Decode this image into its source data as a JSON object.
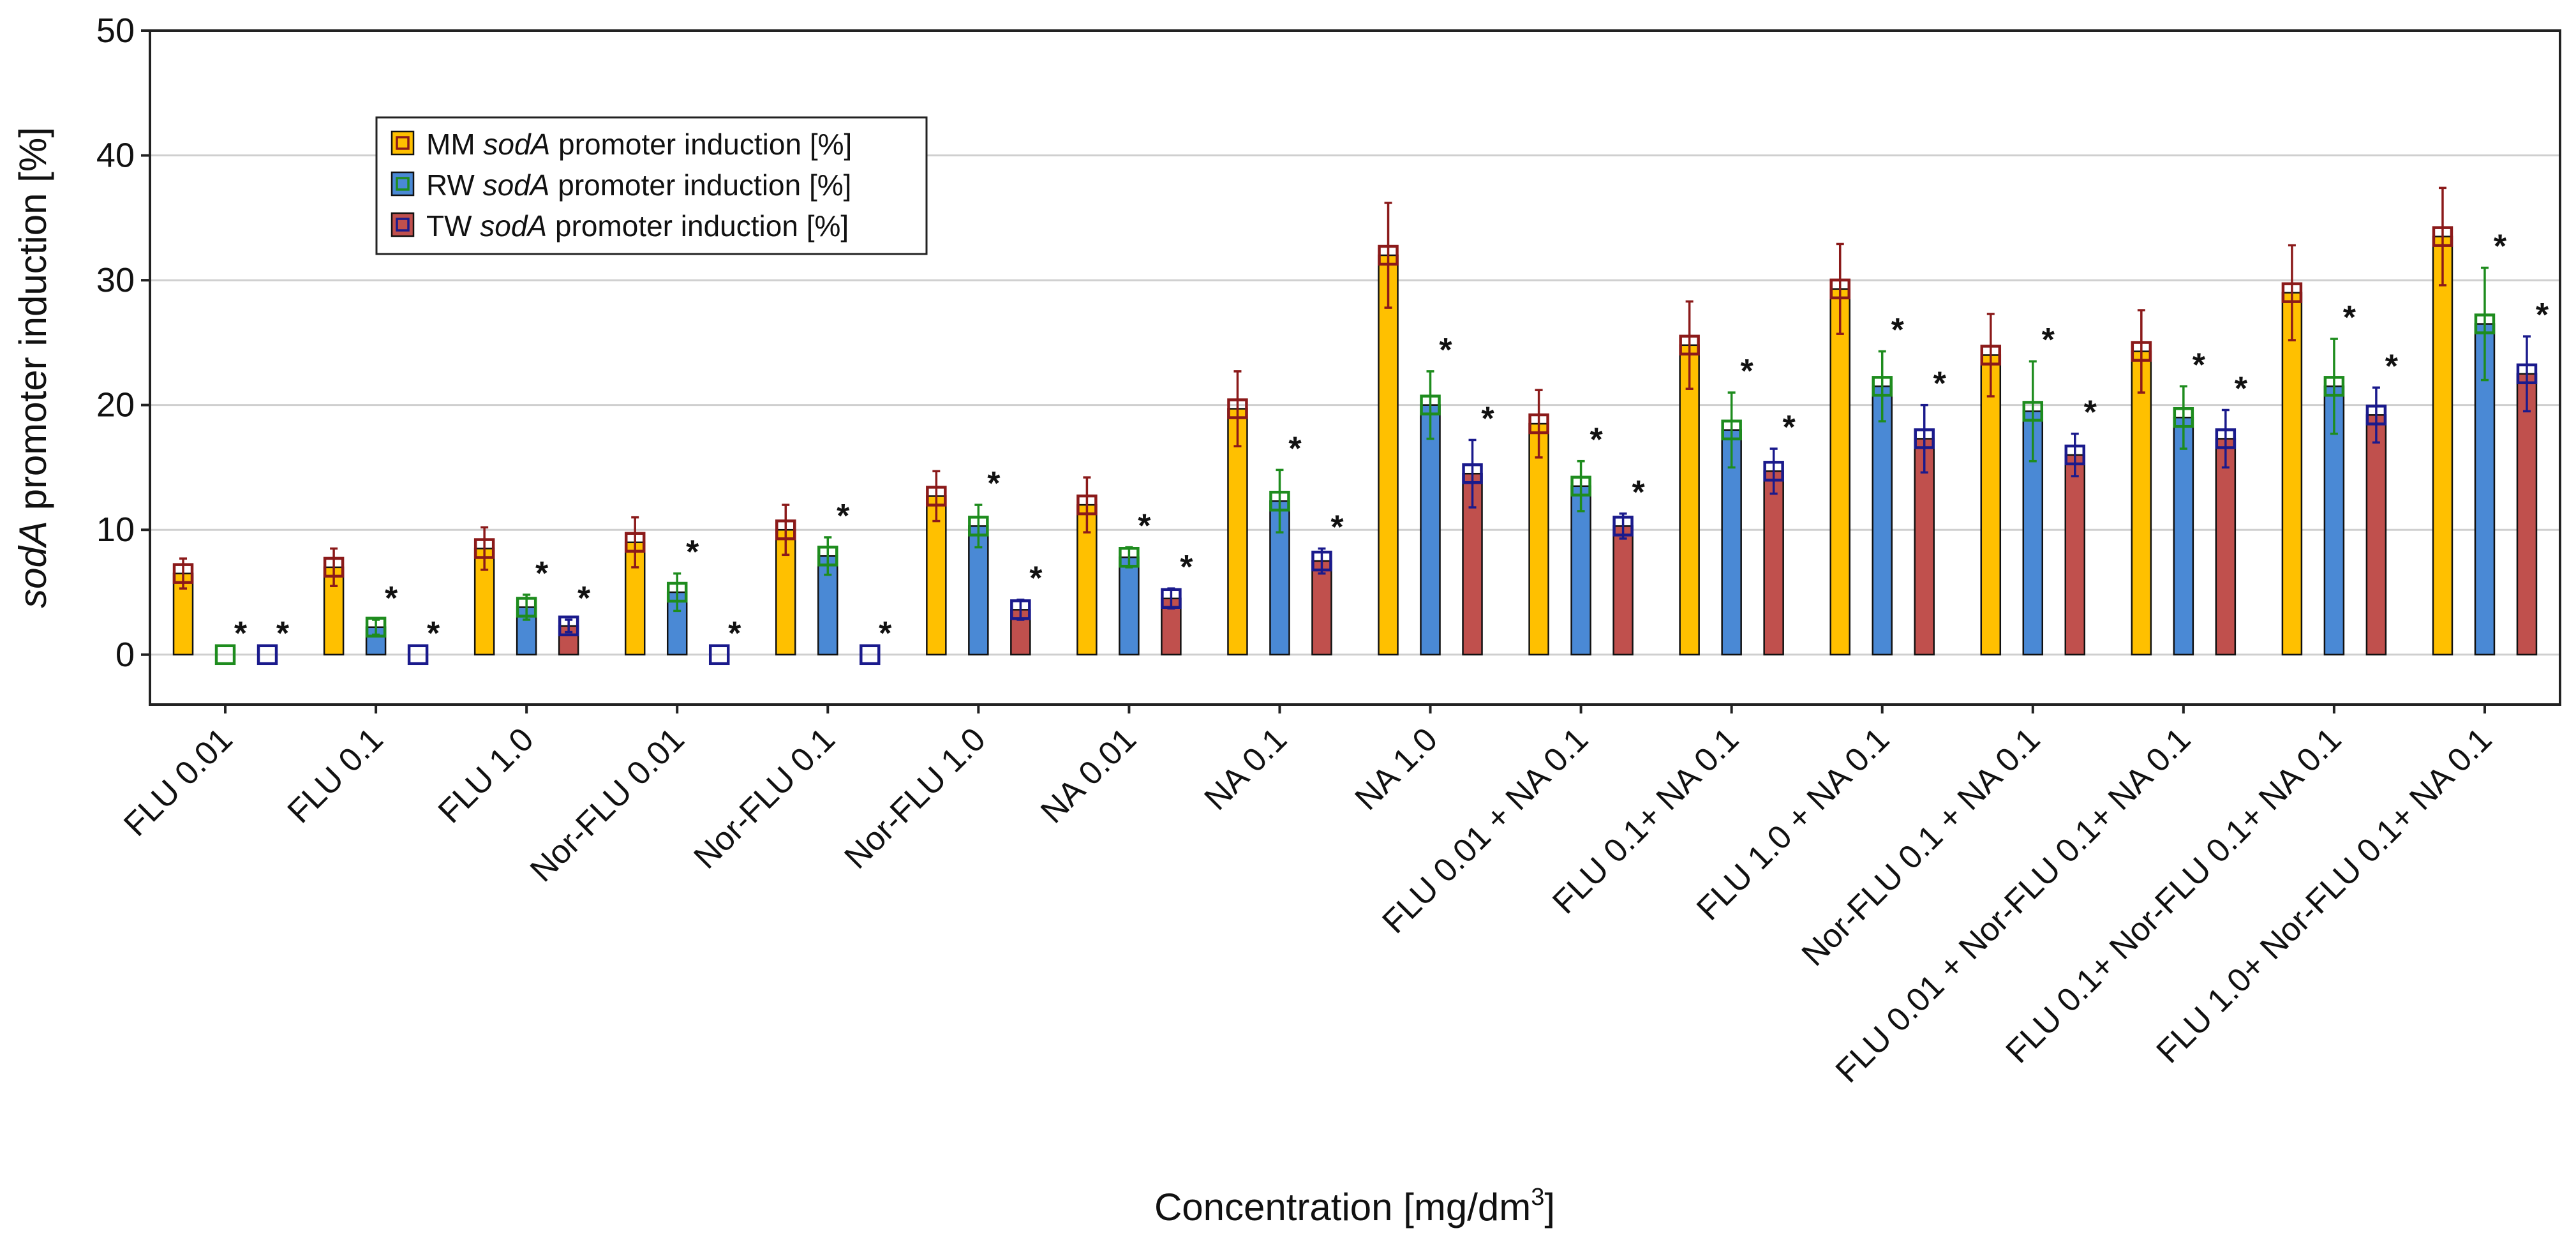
{
  "chart_data": {
    "type": "bar",
    "ylabel_italic": "sodA",
    "ylabel_rest": " promoter induction [%]",
    "xlabel_main": "Concentration [mg/dm",
    "xlabel_sup": "3",
    "xlabel_close": "]",
    "ylim": [
      -4,
      50
    ],
    "yticks": [
      0,
      10,
      20,
      30,
      40,
      50
    ],
    "grid": true,
    "legend_position": "top-left",
    "significance_marker": "*",
    "categories": [
      "FLU 0.01",
      "FLU 0.1",
      "FLU 1.0",
      "Nor-FLU 0.01",
      "Nor-FLU 0.1",
      "Nor-FLU 1.0",
      "NA 0.01",
      "NA 0.1",
      "NA 1.0",
      "FLU 0.01 + NA 0.1",
      "FLU 0.1+ NA 0.1",
      "FLU 1.0 + NA 0.1",
      "Nor-FLU 0.1 + NA 0.1",
      "FLU 0.01 + Nor-FLU 0.1+ NA 0.1",
      "FLU 0.1+ Nor-FLU 0.1+ NA 0.1",
      "FLU 1.0+ Nor-FLU 0.1+ NA 0.1"
    ],
    "series": [
      {
        "name_pre": "MM ",
        "name_italic": "sodA",
        "name_post": " promoter induction [%]",
        "bar_color": "#FFC000",
        "marker_color": "#8B1A1A",
        "values": [
          6.5,
          7.0,
          8.5,
          9.0,
          10.0,
          12.7,
          12.0,
          19.7,
          32.0,
          18.5,
          24.8,
          29.3,
          24.0,
          24.3,
          29.0,
          33.5
        ],
        "errors": [
          1.2,
          1.5,
          1.7,
          2.0,
          2.0,
          2.0,
          2.2,
          3.0,
          4.2,
          2.7,
          3.5,
          3.6,
          3.3,
          3.3,
          3.8,
          3.9
        ],
        "significant": [
          false,
          false,
          false,
          false,
          false,
          false,
          false,
          false,
          false,
          false,
          false,
          false,
          false,
          false,
          false,
          false
        ]
      },
      {
        "name_pre": "RW ",
        "name_italic": "sodA",
        "name_post": " promoter induction [%]",
        "bar_color": "#4A89D5",
        "marker_color": "#1E8C1E",
        "values": [
          0.0,
          2.2,
          3.8,
          5.0,
          7.9,
          10.3,
          7.8,
          12.3,
          20.0,
          13.5,
          18.0,
          21.5,
          19.5,
          19.0,
          21.5,
          26.5
        ],
        "errors": [
          0.0,
          0.6,
          1.0,
          1.5,
          1.5,
          1.7,
          0.8,
          2.5,
          2.7,
          2.0,
          3.0,
          2.8,
          4.0,
          2.5,
          3.8,
          4.5
        ],
        "significant": [
          true,
          true,
          true,
          true,
          true,
          true,
          true,
          true,
          true,
          true,
          true,
          true,
          true,
          true,
          true,
          true
        ]
      },
      {
        "name_pre": "TW ",
        "name_italic": "sodA",
        "name_post": " promoter induction [%]",
        "bar_color": "#C0504D",
        "marker_color": "#1A1A8C",
        "values": [
          0.0,
          0.0,
          2.3,
          0.0,
          0.0,
          3.6,
          4.5,
          7.5,
          14.5,
          10.3,
          14.7,
          17.3,
          16.0,
          17.3,
          19.2,
          22.5
        ],
        "errors": [
          0.0,
          0.0,
          0.5,
          0.0,
          0.0,
          0.8,
          0.8,
          1.0,
          2.7,
          1.0,
          1.8,
          2.7,
          1.7,
          2.3,
          2.2,
          3.0
        ],
        "significant": [
          true,
          true,
          true,
          true,
          true,
          true,
          true,
          true,
          true,
          true,
          true,
          true,
          true,
          true,
          true,
          true
        ]
      }
    ]
  }
}
